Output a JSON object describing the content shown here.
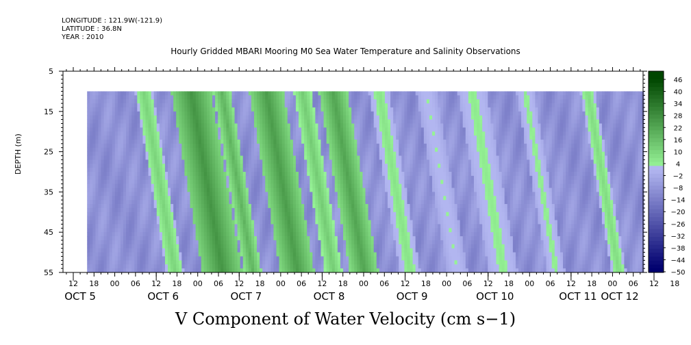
{
  "header": {
    "longitude": "LONGITUDE : 121.9W(-121.9)",
    "latitude": "LATITUDE : 36.8N",
    "year": "YEAR : 2010"
  },
  "chart_data": {
    "type": "heatmap",
    "title": "Hourly Gridded MBARI Mooring M0 Sea Water Temperature and Salinity Observations",
    "xlabel": "V Component of Water Velocity (cm s−1)",
    "ylabel": "DEPTH (m)",
    "y_axis": {
      "ticks": [
        5,
        15,
        25,
        35,
        45,
        55
      ],
      "ylim": [
        5,
        55
      ],
      "inverted": true
    },
    "x_axis": {
      "hour_labels": [
        "12",
        "18",
        "00",
        "06",
        "12",
        "18",
        "00",
        "06",
        "12",
        "18",
        "00",
        "06",
        "12",
        "18",
        "00",
        "06",
        "12",
        "18",
        "00",
        "06",
        "12",
        "18",
        "00",
        "06",
        "12",
        "18",
        "00",
        "06",
        "12",
        "18",
        "00",
        "06"
      ],
      "day_labels": [
        "OCT  5",
        "OCT  6",
        "OCT  7",
        "OCT  8",
        "OCT  9",
        "OCT 10",
        "OCT 11",
        "OCT 12"
      ]
    },
    "data_extent": {
      "depth_range": [
        10,
        55
      ],
      "time_start": "OCT 5 16:00",
      "time_end": "OCT 12 09:00"
    },
    "colorbar": {
      "labels": [
        "46",
        "40",
        "34",
        "28",
        "22",
        "16",
        "10",
        "4",
        "−2",
        "−8",
        "−14",
        "−20",
        "−26",
        "−32",
        "−38",
        "−44",
        "−50"
      ],
      "range": [
        -50,
        52
      ]
    },
    "bands": [
      {
        "start": 17,
        "end": 23,
        "peak": 12
      },
      {
        "start": 30,
        "end": 44,
        "peak": 28
      },
      {
        "start": 45,
        "end": 51,
        "peak": 20
      },
      {
        "start": 58,
        "end": 70,
        "peak": 26
      },
      {
        "start": 74,
        "end": 80,
        "peak": 14
      },
      {
        "start": 83,
        "end": 93,
        "peak": 24
      },
      {
        "start": 101,
        "end": 108,
        "peak": 8
      },
      {
        "start": 118,
        "end": 125,
        "peak": 4
      },
      {
        "start": 133,
        "end": 143,
        "peak": 6
      },
      {
        "start": 154,
        "end": 160,
        "peak": 6
      },
      {
        "start": 177,
        "end": 182,
        "peak": 10
      }
    ],
    "background_value": -8,
    "shift_per_depth": 0.25
  }
}
